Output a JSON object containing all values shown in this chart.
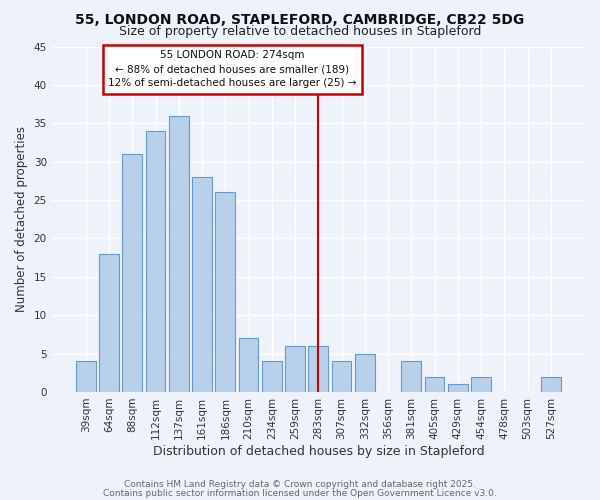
{
  "title1": "55, LONDON ROAD, STAPLEFORD, CAMBRIDGE, CB22 5DG",
  "title2": "Size of property relative to detached houses in Stapleford",
  "xlabel": "Distribution of detached houses by size in Stapleford",
  "ylabel": "Number of detached properties",
  "bar_labels": [
    "39sqm",
    "64sqm",
    "88sqm",
    "112sqm",
    "137sqm",
    "161sqm",
    "186sqm",
    "210sqm",
    "234sqm",
    "259sqm",
    "283sqm",
    "307sqm",
    "332sqm",
    "356sqm",
    "381sqm",
    "405sqm",
    "429sqm",
    "454sqm",
    "478sqm",
    "503sqm",
    "527sqm"
  ],
  "bar_heights": [
    4,
    18,
    31,
    34,
    36,
    28,
    26,
    7,
    4,
    6,
    6,
    4,
    5,
    0,
    4,
    2,
    1,
    2,
    0,
    0,
    2
  ],
  "bar_color": "#b8d0ea",
  "bar_edge_color": "#6699cc",
  "vline_x": 10.0,
  "vline_color": "#cc0000",
  "annotation_title": "55 LONDON ROAD: 274sqm",
  "annotation_line1": "← 88% of detached houses are smaller (189)",
  "annotation_line2": "12% of semi-detached houses are larger (25) →",
  "annotation_box_facecolor": "#ffffff",
  "annotation_box_edgecolor": "#cc0000",
  "ylim": [
    0,
    45
  ],
  "yticks": [
    0,
    5,
    10,
    15,
    20,
    25,
    30,
    35,
    40,
    45
  ],
  "footer1": "Contains HM Land Registry data © Crown copyright and database right 2025.",
  "footer2": "Contains public sector information licensed under the Open Government Licence v3.0.",
  "bg_color": "#eef2fb",
  "grid_color": "#ffffff",
  "title1_fontsize": 10,
  "title2_fontsize": 9,
  "xlabel_fontsize": 9,
  "ylabel_fontsize": 8.5,
  "tick_fontsize": 7.5,
  "footer_fontsize": 6.5
}
